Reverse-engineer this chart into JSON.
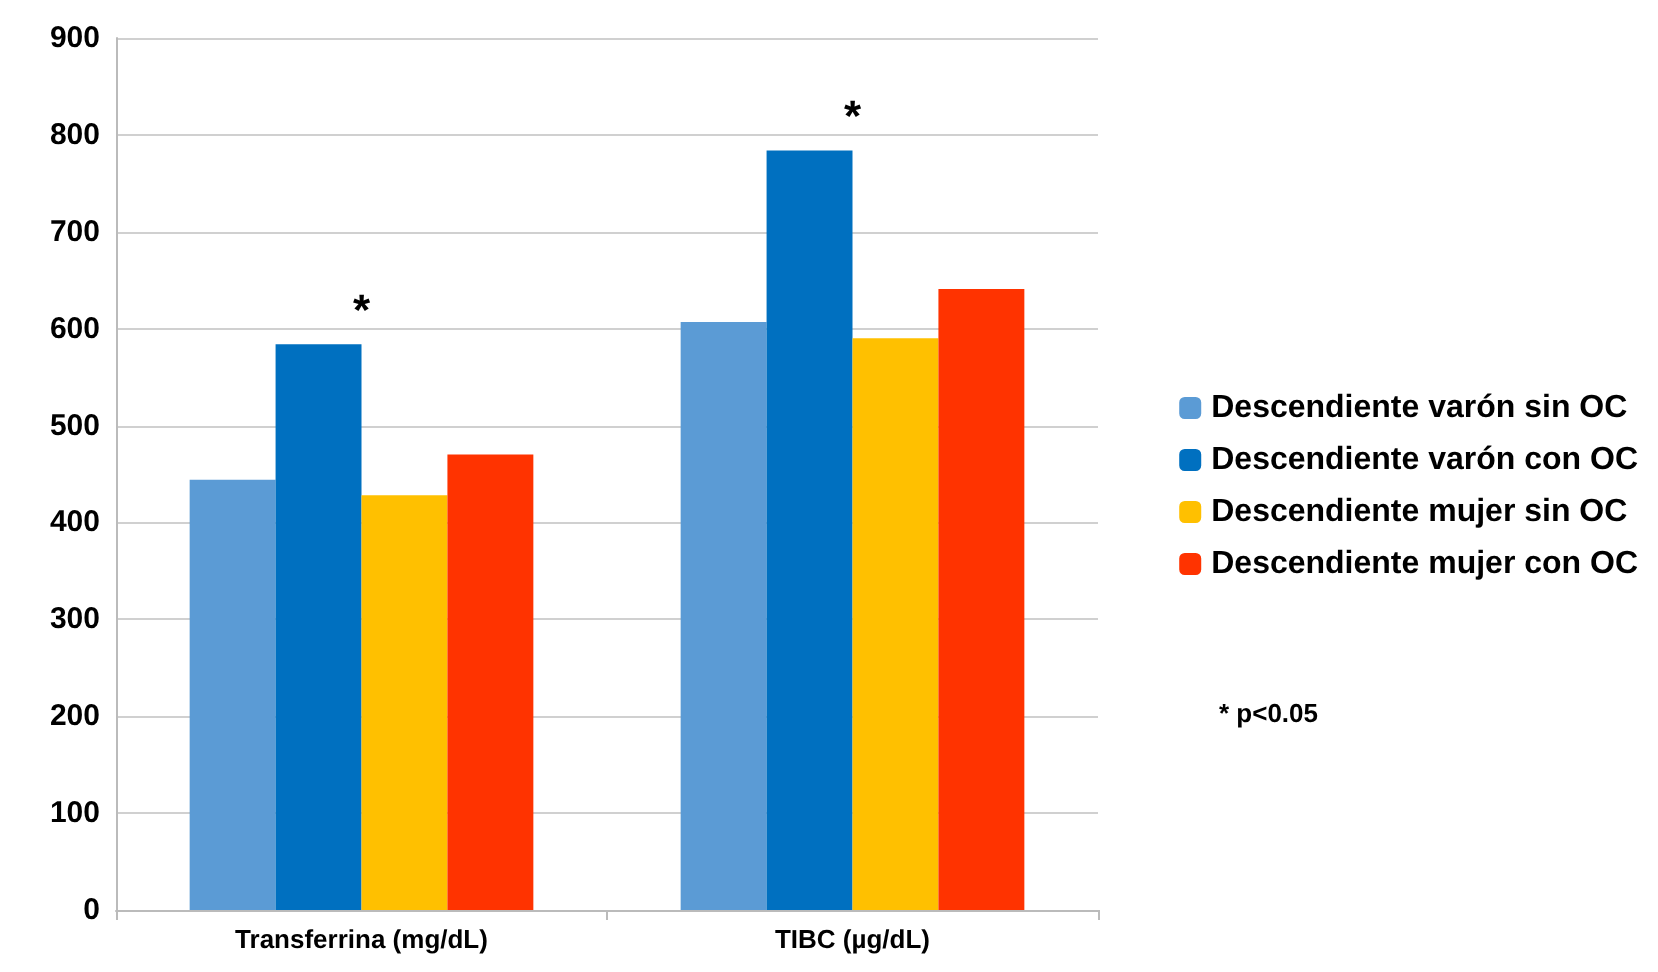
{
  "chart_data": {
    "type": "bar",
    "categories": [
      "Transferrina (mg/dL)",
      "TIBC (µg/dL)"
    ],
    "series": [
      {
        "name": "Descendiente varón sin OC",
        "color": "#5b9bd5",
        "values": [
          444,
          607
        ]
      },
      {
        "name": "Descendiente varón con OC",
        "color": "#0070c0",
        "values": [
          584,
          784
        ]
      },
      {
        "name": "Descendiente mujer sin OC",
        "color": "#ffc000",
        "values": [
          428,
          590
        ]
      },
      {
        "name": "Descendiente mujer con OC",
        "color": "#ff3300",
        "values": [
          470,
          641
        ]
      }
    ],
    "ylim": [
      0,
      900
    ],
    "yticks": [
      0,
      100,
      200,
      300,
      400,
      500,
      600,
      700,
      800,
      900
    ],
    "grid": "y",
    "legend": "right",
    "annotations": [
      {
        "text": "*",
        "x": "Transferrina (mg/dL)",
        "y": 584
      },
      {
        "text": "*",
        "x": "TIBC (µg/dL)",
        "y": 784
      },
      "* p<0.05"
    ]
  }
}
